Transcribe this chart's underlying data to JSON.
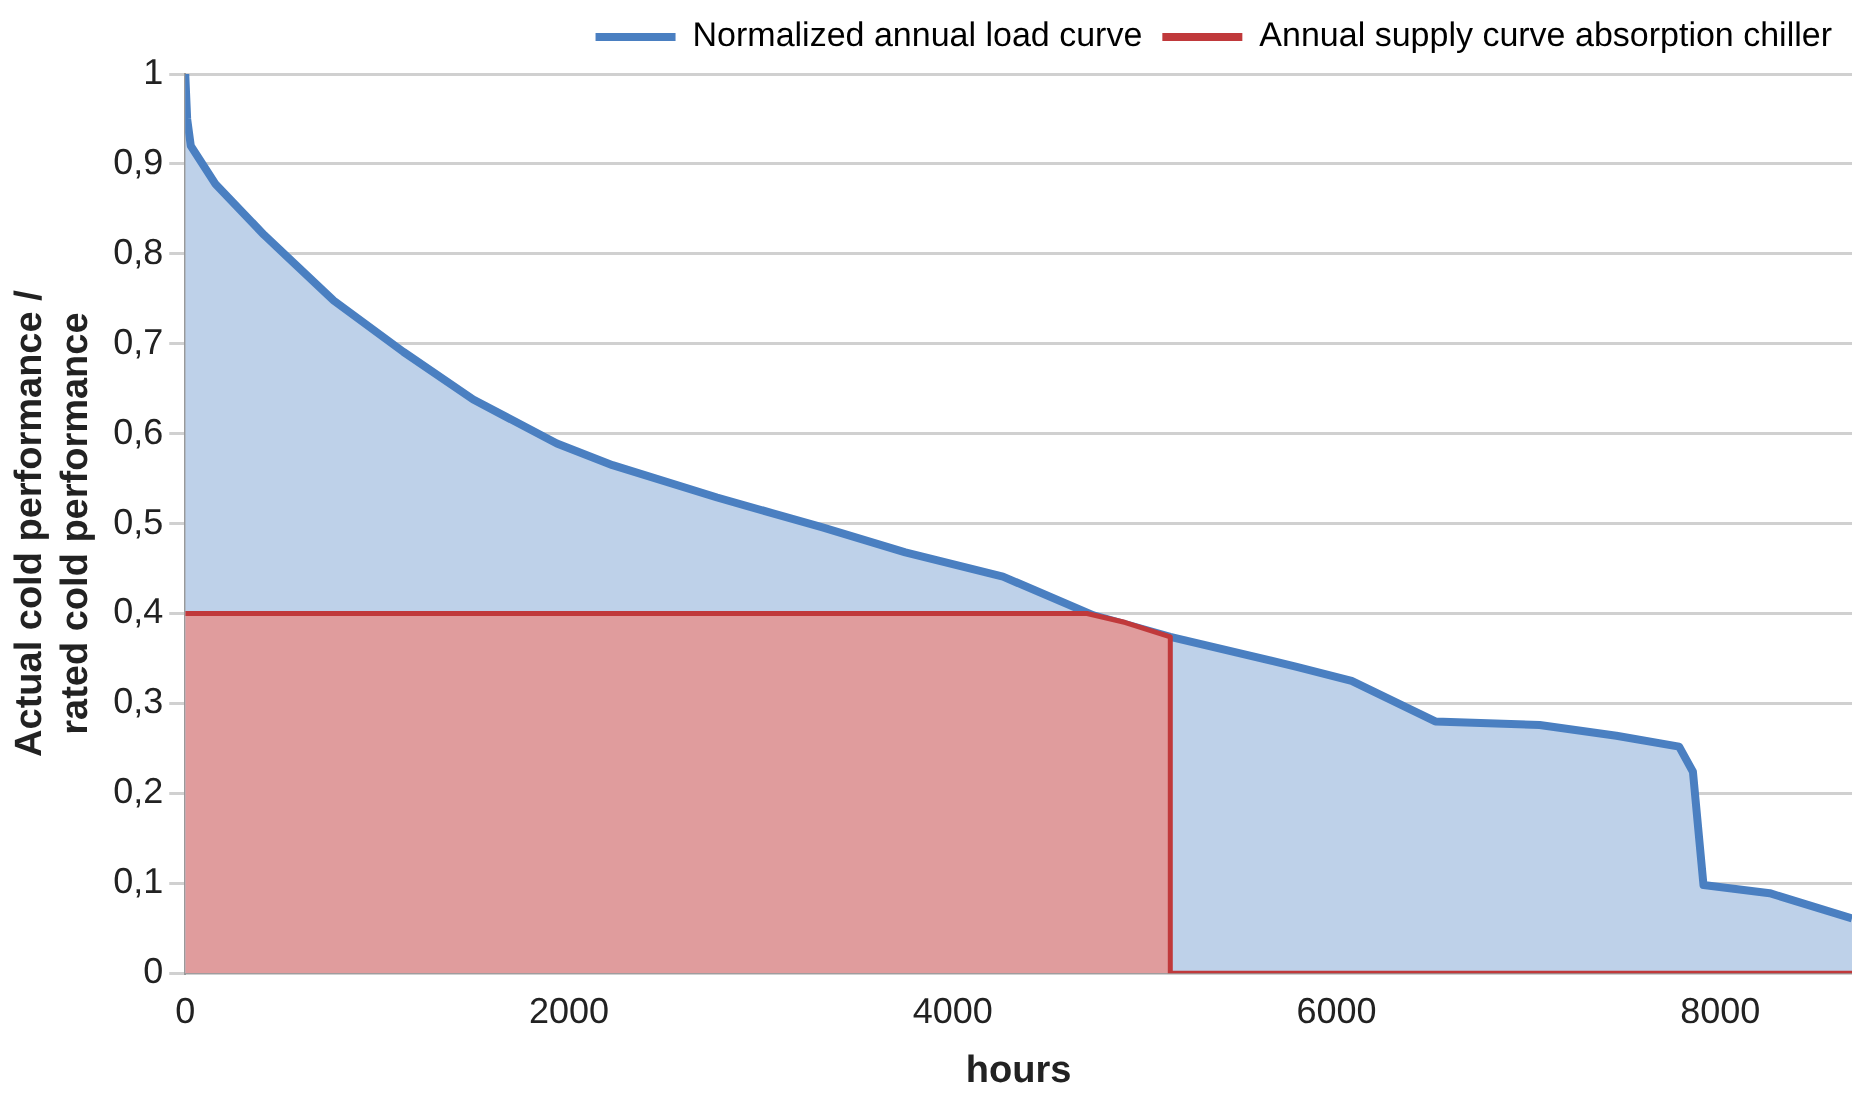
{
  "chart_data": {
    "type": "area",
    "xlabel": "hours",
    "ylabel": "Actual cold performance /\nrated cold performance",
    "series": [
      {
        "name": "Normalized annual load curve",
        "color": "#4a7fc1",
        "x": [
          0,
          10,
          29,
          156,
          411,
          774,
          1137,
          1501,
          1937,
          2227,
          2772,
          3317,
          3753,
          4262,
          4734,
          5134,
          5788,
          6079,
          6515,
          7059,
          7459,
          7786,
          7858,
          7913,
          8258,
          8687
        ],
        "values": [
          1.0,
          0.95,
          0.92,
          0.878,
          0.821,
          0.748,
          0.691,
          0.638,
          0.589,
          0.565,
          0.529,
          0.496,
          0.468,
          0.441,
          0.398,
          0.374,
          0.341,
          0.325,
          0.28,
          0.276,
          0.264,
          0.252,
          0.224,
          0.098,
          0.089,
          0.061
        ]
      },
      {
        "name": "Annual supply curve absorption chiller",
        "color": "#c0393b",
        "x": [
          0,
          4700,
          4900,
          5134,
          5134,
          8687
        ],
        "values": [
          0.4,
          0.4,
          0.39,
          0.374,
          0,
          0
        ]
      }
    ],
    "xlim": [
      0,
      8687
    ],
    "xticks": [
      0,
      2000,
      4000,
      6000,
      8000
    ],
    "ylim": [
      0,
      1
    ],
    "yticks": [
      {
        "value": 0,
        "label": "0"
      },
      {
        "value": 0.1,
        "label": "0,1"
      },
      {
        "value": 0.2,
        "label": "0,2"
      },
      {
        "value": 0.3,
        "label": "0,3"
      },
      {
        "value": 0.4,
        "label": "0,4"
      },
      {
        "value": 0.5,
        "label": "0,5"
      },
      {
        "value": 0.6,
        "label": "0,6"
      },
      {
        "value": 0.7,
        "label": "0,7"
      },
      {
        "value": 0.8,
        "label": "0,8"
      },
      {
        "value": 0.9,
        "label": "0,9"
      },
      {
        "value": 1,
        "label": "1"
      }
    ],
    "grid": "y",
    "legend": "top",
    "marker": "none"
  }
}
